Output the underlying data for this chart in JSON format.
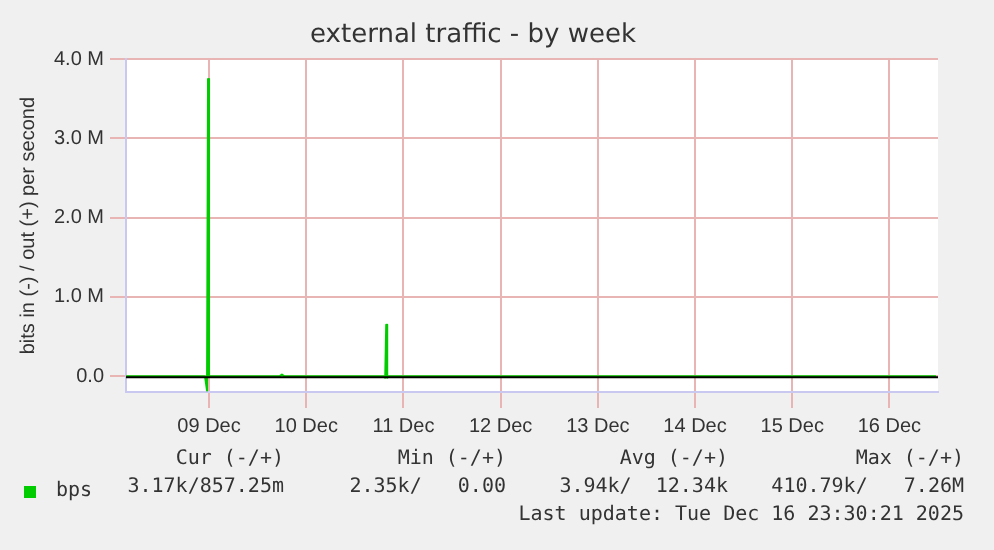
{
  "chart_data": {
    "type": "line",
    "title": "external traffic - by week",
    "ylabel": "bits in (-) / out (+) per second",
    "x": [
      "2025-12-08T15:30",
      "2025-12-09T11:00",
      "2025-12-09T11:30",
      "2025-12-09T11:45",
      "2025-12-09T12:00",
      "2025-12-10T05:30",
      "2025-12-10T06:00",
      "2025-12-10T06:30",
      "2025-12-11T07:00",
      "2025-12-11T07:30",
      "2025-12-11T07:45",
      "2025-12-11T08:00",
      "2025-12-11T08:30",
      "2025-12-16T23:30"
    ],
    "series": [
      {
        "name": "bps",
        "color": "#00cc00",
        "values": [
          0,
          0,
          -180000,
          3750000,
          0,
          0,
          20000,
          0,
          0,
          -20000,
          650000,
          -20000,
          0,
          0
        ]
      }
    ],
    "xlim": [
      "2025-12-08T15:30",
      "2025-12-17T00:00"
    ],
    "xticks": [
      {
        "value": "2025-12-09T12:00",
        "label": "09 Dec"
      },
      {
        "value": "2025-12-10T12:00",
        "label": "10 Dec"
      },
      {
        "value": "2025-12-11T12:00",
        "label": "11 Dec"
      },
      {
        "value": "2025-12-12T12:00",
        "label": "12 Dec"
      },
      {
        "value": "2025-12-13T12:00",
        "label": "13 Dec"
      },
      {
        "value": "2025-12-14T12:00",
        "label": "14 Dec"
      },
      {
        "value": "2025-12-15T12:00",
        "label": "15 Dec"
      },
      {
        "value": "2025-12-16T12:00",
        "label": "16 Dec"
      }
    ],
    "ylim": [
      -200000,
      4000000
    ],
    "yticks": [
      {
        "value": 0,
        "label": "0.0"
      },
      {
        "value": 1000000,
        "label": "1.0 M"
      },
      {
        "value": 2000000,
        "label": "2.0 M"
      },
      {
        "value": 3000000,
        "label": "3.0 M"
      },
      {
        "value": 4000000,
        "label": "4.0 M"
      }
    ],
    "grid": true,
    "legend": "bottom left",
    "marker": "none",
    "line_style": "solid",
    "annotations": [
      "Cur (-/+)",
      "Min (-/+)",
      "Avg (-/+)",
      "Max (-/+)",
      "3.17k/857.25m",
      "2.35k/   0.00",
      "3.94k/  12.34k",
      "410.79k/   7.26M",
      "Last update: Tue Dec 16 23:30:21 2025"
    ]
  }
}
